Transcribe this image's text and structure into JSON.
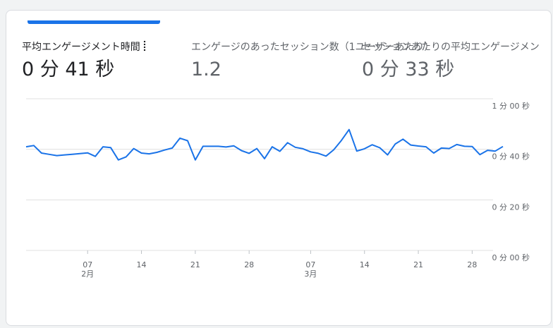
{
  "metrics": [
    {
      "label": "平均エンゲージメント時間",
      "value": "0 分 41 秒",
      "active": true
    },
    {
      "label": "エンゲージのあったセッション数（1ユーザーあたり）",
      "value": "1.2",
      "active": false
    },
    {
      "label": "セッションあたりの平均エンゲージメン",
      "value": "0 分 33 秒",
      "active": false
    }
  ],
  "colors": {
    "line": "#1a73e8",
    "accent": "#1a73e8",
    "grid": "#e0e0e0"
  },
  "chart_data": {
    "type": "line",
    "x_range": [
      "2024-01-30",
      "2024-04-01"
    ],
    "y_range_seconds": [
      0,
      60
    ],
    "yticks": [
      {
        "value": 60,
        "label": "1 分 00 秒"
      },
      {
        "value": 40,
        "label": "0 分 40 秒"
      },
      {
        "value": 20,
        "label": "0 分 20 秒"
      },
      {
        "value": 0,
        "label": "0 分 00 秒"
      }
    ],
    "xticks": [
      {
        "date": "2024-02-07",
        "label": "07",
        "sublabel": "2月"
      },
      {
        "date": "2024-02-14",
        "label": "14",
        "sublabel": ""
      },
      {
        "date": "2024-02-21",
        "label": "21",
        "sublabel": ""
      },
      {
        "date": "2024-02-28",
        "label": "28",
        "sublabel": ""
      },
      {
        "date": "2024-03-07",
        "label": "07",
        "sublabel": "3月"
      },
      {
        "date": "2024-03-14",
        "label": "14",
        "sublabel": ""
      },
      {
        "date": "2024-03-21",
        "label": "21",
        "sublabel": ""
      },
      {
        "date": "2024-03-28",
        "label": "28",
        "sublabel": ""
      }
    ],
    "grid": true,
    "series": [
      {
        "x": [
          "2024-01-30",
          "2024-01-31",
          "2024-02-01",
          "2024-02-02",
          "2024-02-03",
          "2024-02-04",
          "2024-02-05",
          "2024-02-06",
          "2024-02-07",
          "2024-02-08",
          "2024-02-09",
          "2024-02-10",
          "2024-02-11",
          "2024-02-12",
          "2024-02-13",
          "2024-02-14",
          "2024-02-15",
          "2024-02-16",
          "2024-02-17",
          "2024-02-18",
          "2024-02-19",
          "2024-02-20",
          "2024-02-21",
          "2024-02-22",
          "2024-02-23",
          "2024-02-24",
          "2024-02-25",
          "2024-02-26",
          "2024-02-27",
          "2024-02-28",
          "2024-02-29",
          "2024-03-01",
          "2024-03-02",
          "2024-03-03",
          "2024-03-04",
          "2024-03-05",
          "2024-03-06",
          "2024-03-07",
          "2024-03-08",
          "2024-03-09",
          "2024-03-10",
          "2024-03-11",
          "2024-03-12",
          "2024-03-13",
          "2024-03-14",
          "2024-03-15",
          "2024-03-16",
          "2024-03-17",
          "2024-03-18",
          "2024-03-19",
          "2024-03-20",
          "2024-03-21",
          "2024-03-22",
          "2024-03-23",
          "2024-03-24",
          "2024-03-25",
          "2024-03-26",
          "2024-03-27",
          "2024-03-28",
          "2024-03-29",
          "2024-03-30",
          "2024-03-31",
          "2024-04-01"
        ],
        "values": [
          41,
          41.5,
          38.5,
          38,
          37.5,
          37.8,
          38,
          38.3,
          38.6,
          37.2,
          41,
          40.7,
          35.8,
          37,
          40.3,
          38.5,
          38.2,
          38.8,
          39.7,
          40.5,
          44.4,
          43.4,
          35.8,
          41.2,
          41.2,
          41.2,
          40.9,
          41.4,
          39.5,
          38.4,
          40.3,
          36.3,
          41,
          39.2,
          42.6,
          40.8,
          40.2,
          39,
          38.4,
          37.3,
          39.8,
          43.5,
          47.8,
          39.3,
          40.2,
          41.8,
          40.6,
          37.8,
          42.1,
          44,
          41.7,
          41.3,
          41,
          38.5,
          40.5,
          40.3,
          41.9,
          41.2,
          41.1,
          37.9,
          39.6,
          39.3,
          41.1
        ]
      }
    ]
  }
}
